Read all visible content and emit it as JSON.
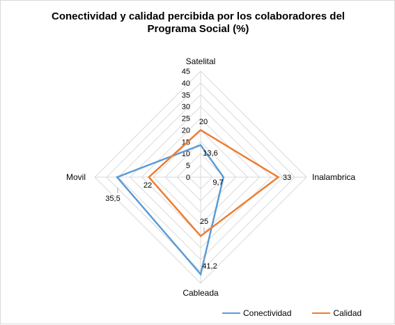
{
  "chart_data": {
    "type": "radar",
    "title_line1": "Conectividad y calidad percibida por los colaboradores del",
    "title_line2": "Programa Social (%)",
    "categories": [
      "Satelital",
      "Inalambrica",
      "Cableada",
      "Movil"
    ],
    "ticks": [
      "0",
      "5",
      "10",
      "15",
      "20",
      "25",
      "30",
      "35",
      "40",
      "45"
    ],
    "rlim": [
      0,
      45
    ],
    "grid": true,
    "legend_position": "bottom-right",
    "series": [
      {
        "name": "Conectividad",
        "values": [
          13.6,
          9.7,
          41.2,
          35.5
        ],
        "labels": [
          "13,6",
          "9,7",
          "41,2",
          "35,5"
        ],
        "color": "#5b9bd5"
      },
      {
        "name": "Calidad",
        "values": [
          20,
          33,
          25,
          22
        ],
        "labels": [
          "20",
          "33",
          "25",
          "22"
        ],
        "color": "#ed7d31"
      }
    ]
  }
}
